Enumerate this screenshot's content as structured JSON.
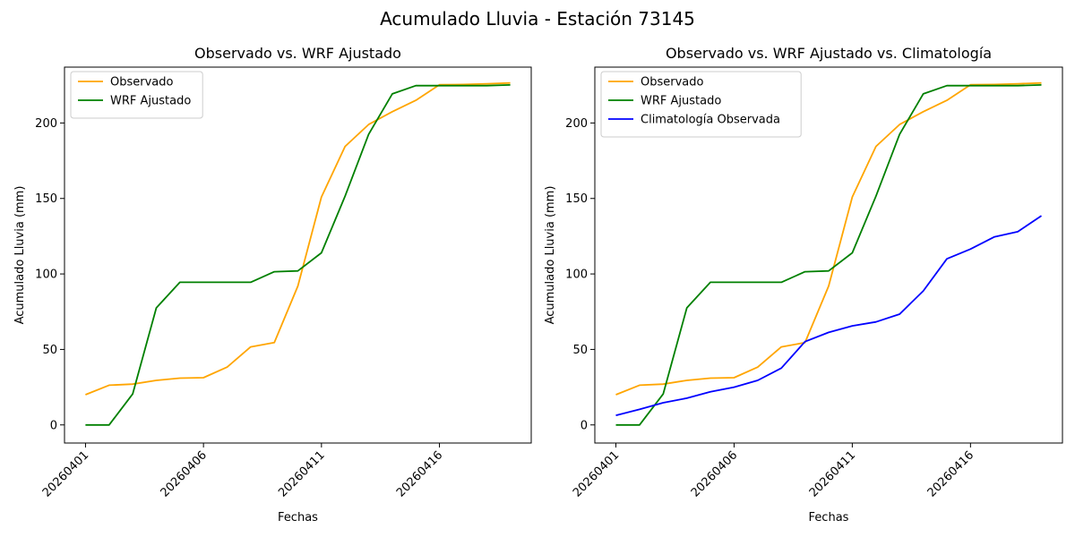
{
  "figure": {
    "suptitle": "Acumulado Lluvia - Estación 73145"
  },
  "chart_data": [
    {
      "type": "line",
      "title": "Observado vs. WRF Ajustado",
      "xlabel": "Fechas",
      "ylabel": "Acumulado Lluvia (mm)",
      "x": [
        "20260401",
        "20260402",
        "20260403",
        "20260404",
        "20260405",
        "20260406",
        "20260407",
        "20260408",
        "20260409",
        "20260410",
        "20260411",
        "20260412",
        "20260413",
        "20260414",
        "20260415",
        "20260416",
        "20260417",
        "20260418",
        "20260419"
      ],
      "xticks": [
        "20260401",
        "20260406",
        "20260411",
        "20260416"
      ],
      "yticks": [
        0,
        50,
        100,
        150,
        200
      ],
      "ylim": [
        -12,
        237
      ],
      "legend": "top-left",
      "series": [
        {
          "name": "Observado",
          "color": "#ffa500",
          "values": [
            20,
            26.3,
            27,
            29.5,
            31,
            31.3,
            38.3,
            51.7,
            54.5,
            92,
            151,
            184.5,
            199,
            207.5,
            215,
            225.3,
            225.5,
            226,
            226.5
          ]
        },
        {
          "name": "WRF Ajustado",
          "color": "#008000",
          "values": [
            0,
            0,
            20.5,
            77.5,
            94.5,
            94.5,
            94.5,
            94.5,
            101.5,
            102,
            114,
            151.5,
            192.5,
            219.3,
            224.7,
            224.7,
            224.7,
            224.7,
            225.2
          ]
        }
      ]
    },
    {
      "type": "line",
      "title": "Observado vs. WRF Ajustado vs. Climatología",
      "xlabel": "Fechas",
      "ylabel": "Acumulado Lluvia (mm)",
      "x": [
        "20260401",
        "20260402",
        "20260403",
        "20260404",
        "20260405",
        "20260406",
        "20260407",
        "20260408",
        "20260409",
        "20260410",
        "20260411",
        "20260412",
        "20260413",
        "20260414",
        "20260415",
        "20260416",
        "20260417",
        "20260418",
        "20260419"
      ],
      "xticks": [
        "20260401",
        "20260406",
        "20260411",
        "20260416"
      ],
      "yticks": [
        0,
        50,
        100,
        150,
        200
      ],
      "ylim": [
        -12,
        237
      ],
      "legend": "top-left",
      "series": [
        {
          "name": "Observado",
          "color": "#ffa500",
          "values": [
            20,
            26.3,
            27,
            29.5,
            31,
            31.3,
            38.3,
            51.7,
            54.5,
            92,
            151,
            184.5,
            199,
            207.5,
            215,
            225.3,
            225.5,
            226,
            226.5
          ]
        },
        {
          "name": "WRF Ajustado",
          "color": "#008000",
          "values": [
            0,
            0,
            20.5,
            77.5,
            94.5,
            94.5,
            94.5,
            94.5,
            101.5,
            102,
            114,
            151.5,
            192.5,
            219.3,
            224.7,
            224.7,
            224.7,
            224.7,
            225.2
          ]
        },
        {
          "name": "Climatología Observada",
          "color": "#0000ff",
          "values": [
            6.3,
            10.3,
            14.7,
            17.7,
            22,
            25,
            29.5,
            37.6,
            55.2,
            61.3,
            65.6,
            68.2,
            73.4,
            88.7,
            110,
            116.5,
            124.5,
            128,
            138.5
          ]
        }
      ]
    }
  ]
}
